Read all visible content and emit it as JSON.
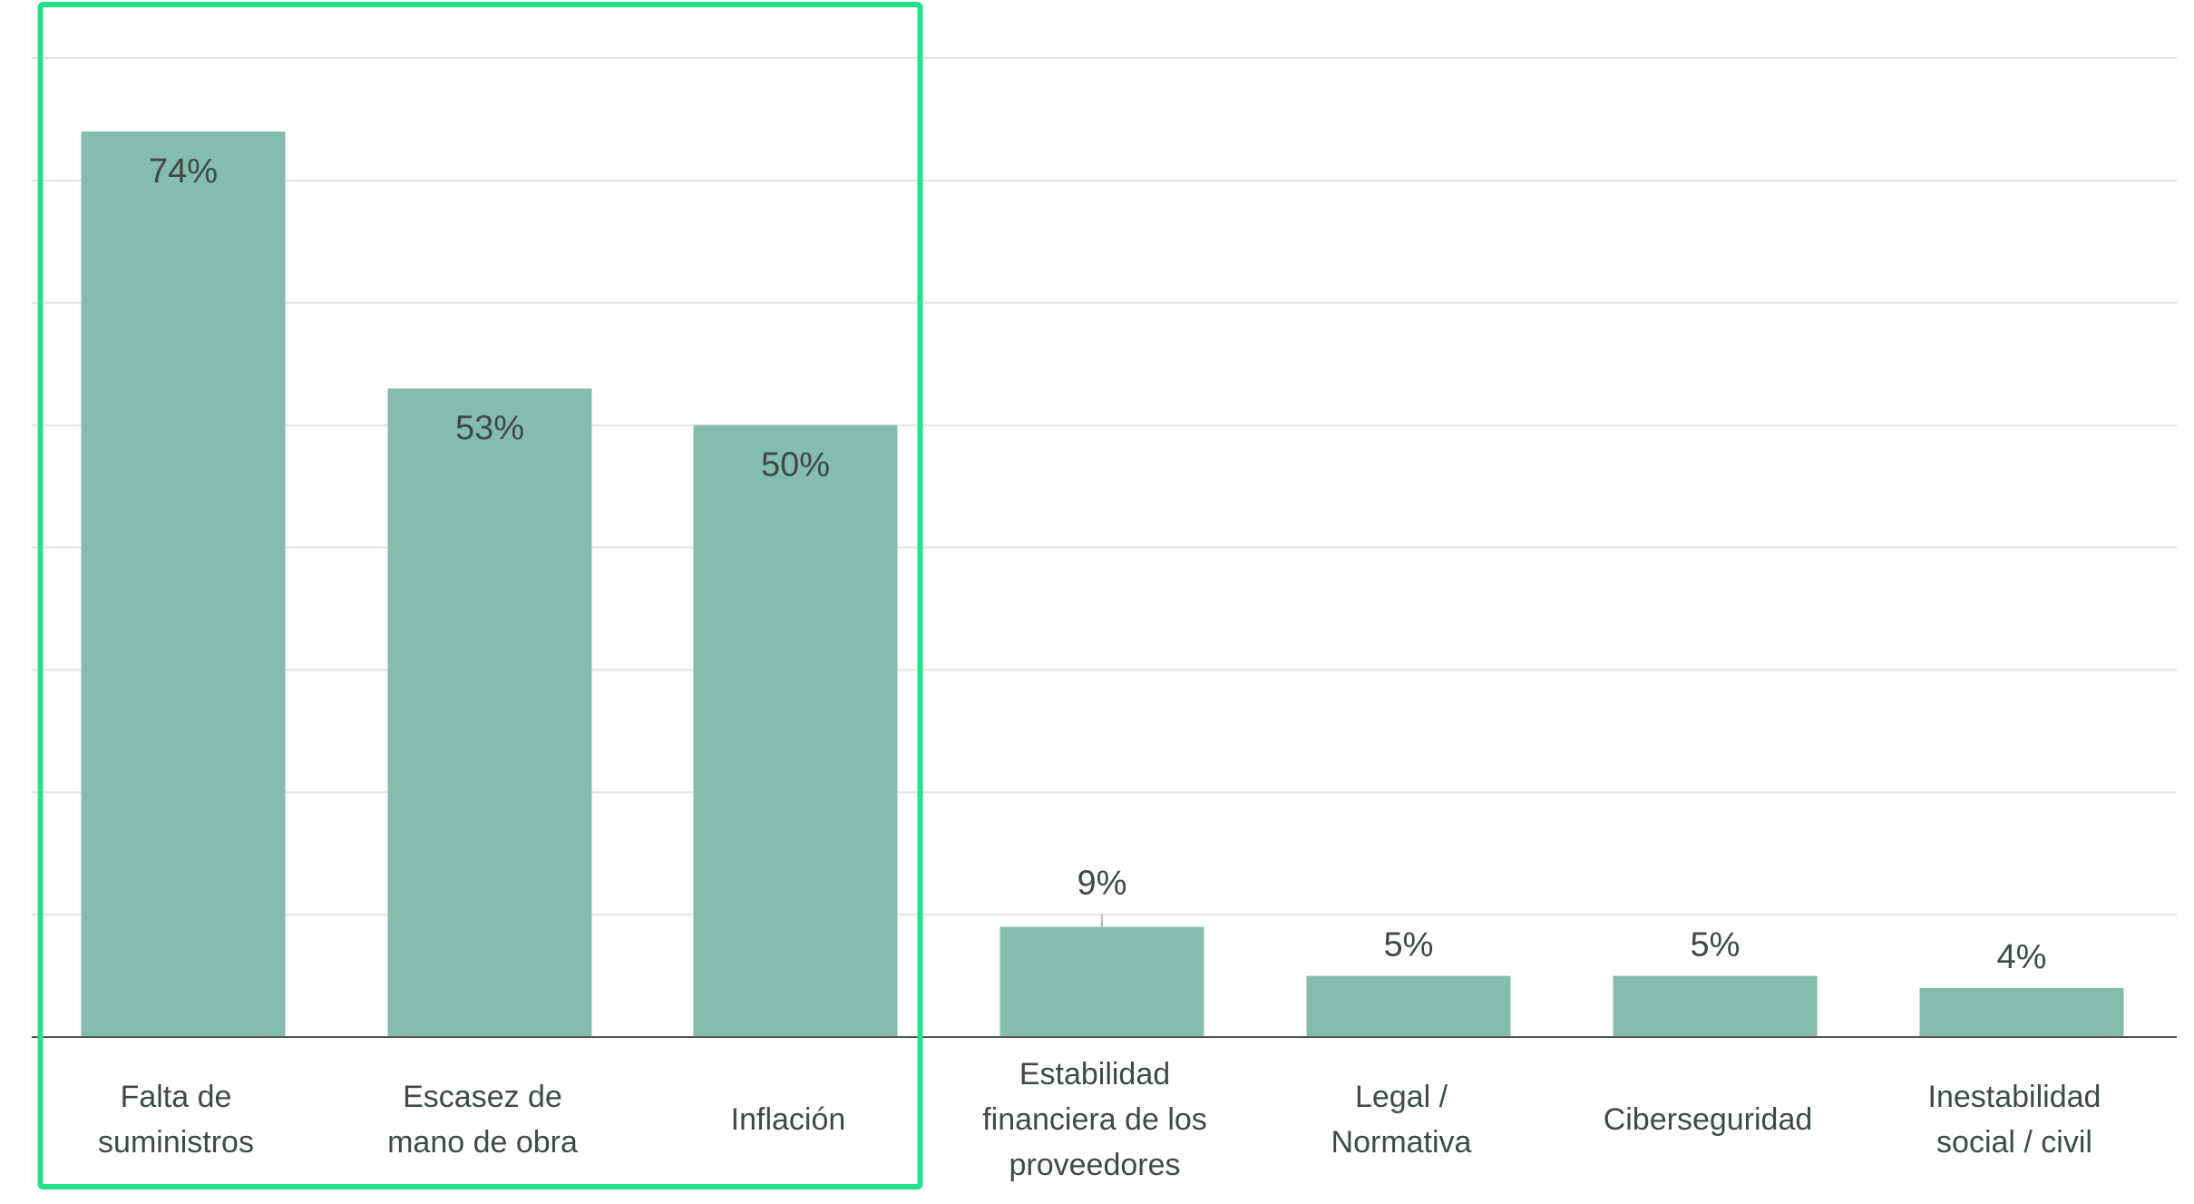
{
  "chart_data": {
    "type": "bar",
    "categories": [
      [
        "Falta de",
        "suministros"
      ],
      [
        "Escasez de",
        "mano de obra"
      ],
      [
        "Inflación"
      ],
      [
        "Estabilidad",
        "financiera de los",
        "proveedores"
      ],
      [
        "Legal /",
        "Normativa"
      ],
      [
        "Ciberseguridad"
      ],
      [
        "Inestabilidad",
        "social / civil"
      ]
    ],
    "values": [
      74,
      53,
      50,
      9,
      5,
      5,
      4
    ],
    "value_labels": [
      "74%",
      "53%",
      "50%",
      "9%",
      "5%",
      "5%",
      "4%"
    ],
    "ylim": [
      0,
      80
    ],
    "grid": true,
    "highlight_categories": [
      0,
      1,
      2
    ],
    "colors": {
      "bar": "#84bcad",
      "highlight": "#22e38a",
      "grid": "#e3e3e3",
      "text": "#3f4a47"
    }
  }
}
